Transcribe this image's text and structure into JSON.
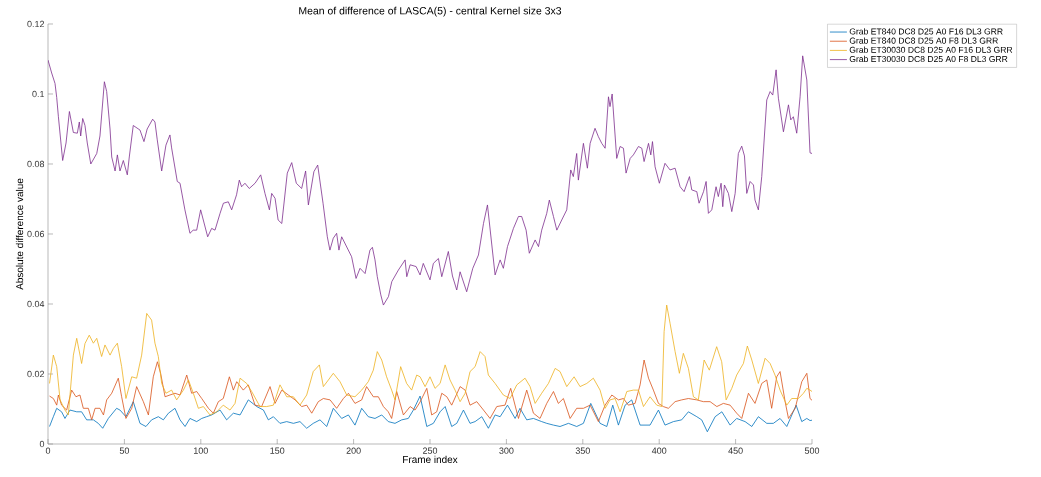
{
  "chart_data": {
    "type": "line",
    "title": "Mean of difference of LASCA(5) - central Kernel size 3x3",
    "xlabel": "Frame index",
    "ylabel": "Absolute difference value",
    "xlim": [
      0,
      500
    ],
    "ylim": [
      0,
      0.12
    ],
    "xticks": [
      0,
      50,
      100,
      150,
      200,
      250,
      300,
      350,
      400,
      450,
      500
    ],
    "yticks": [
      0,
      0.02,
      0.04,
      0.06,
      0.08,
      0.1,
      0.12
    ],
    "grid": false,
    "legend": "top right",
    "series": [
      {
        "name": "Grab ET840 DC8 D25 A0 F16 DL3 GRR",
        "color": "#0072bd",
        "x": [
          1,
          3.5,
          5.7,
          8.9,
          11.1,
          14.4,
          18.8,
          22,
          25.3,
          29.7,
          32.9,
          35.8,
          39.5,
          44.9,
          47.1,
          51,
          55.8,
          60.2,
          64.1,
          67.8,
          72.2,
          75.5,
          78.8,
          83.1,
          86.4,
          89.7,
          92.9,
          97.3,
          100.6,
          103.8,
          107.1,
          112.6,
          116.9,
          121.3,
          125.7,
          131.1,
          136.6,
          141,
          144.2,
          147.5,
          151.8,
          156.2,
          160.6,
          164.9,
          169.3,
          173.6,
          178,
          182.4,
          186.7,
          192.2,
          196.6,
          200.9,
          205.3,
          209.6,
          214,
          218.4,
          222.7,
          227.1,
          231.5,
          235.8,
          239.1,
          243.5,
          247.9,
          252.2,
          256.6,
          259.9,
          264.2,
          267.5,
          271.9,
          276.2,
          279.5,
          283.9,
          288.2,
          292.6,
          295.9,
          300.7,
          305.7,
          308.9,
          313.3,
          317.7,
          323.1,
          326.4,
          330.8,
          335.1,
          340.6,
          346,
          350.4,
          355.2,
          361.3,
          365.7,
          369.6,
          373.3,
          377.7,
          382,
          387.5,
          394,
          399.5,
          403.8,
          409.3,
          414.7,
          419.1,
          424.6,
          427.8,
          431.5,
          436.6,
          441,
          446.4,
          450.7,
          456.2,
          460.6,
          464.9,
          470.4,
          474.7,
          479.1,
          483.5,
          489.6,
          493.3,
          496.6,
          498.7,
          500
        ],
        "values": [
          0.005,
          0.0078,
          0.0102,
          0.0092,
          0.0073,
          0.0097,
          0.0092,
          0.0092,
          0.0069,
          0.0069,
          0.0059,
          0.0045,
          0.0073,
          0.0102,
          0.0097,
          0.0078,
          0.0121,
          0.0059,
          0.005,
          0.0069,
          0.0078,
          0.0069,
          0.0088,
          0.0102,
          0.0069,
          0.005,
          0.0073,
          0.0064,
          0.0073,
          0.0078,
          0.0083,
          0.0097,
          0.0069,
          0.0088,
          0.0083,
          0.0126,
          0.0107,
          0.0097,
          0.0069,
          0.0078,
          0.0059,
          0.0064,
          0.0059,
          0.0064,
          0.0045,
          0.0059,
          0.0069,
          0.005,
          0.0102,
          0.0073,
          0.0083,
          0.0054,
          0.0102,
          0.0078,
          0.0073,
          0.0083,
          0.0064,
          0.0059,
          0.0069,
          0.0073,
          0.0097,
          0.0137,
          0.005,
          0.0059,
          0.0092,
          0.0107,
          0.005,
          0.0059,
          0.0097,
          0.0059,
          0.0064,
          0.0078,
          0.0045,
          0.0083,
          0.0078,
          0.0111,
          0.0073,
          0.0102,
          0.0069,
          0.0073,
          0.0064,
          0.0059,
          0.0054,
          0.005,
          0.0059,
          0.005,
          0.0059,
          0.0116,
          0.0059,
          0.005,
          0.0111,
          0.0054,
          0.0111,
          0.0126,
          0.0054,
          0.0054,
          0.0097,
          0.0054,
          0.0064,
          0.0069,
          0.0092,
          0.0078,
          0.0069,
          0.0035,
          0.0078,
          0.0092,
          0.0054,
          0.0073,
          0.0064,
          0.005,
          0.0078,
          0.0059,
          0.0059,
          0.0073,
          0.005,
          0.0111,
          0.0064,
          0.0073,
          0.0067,
          0.0068
        ]
      },
      {
        "name": "Grab ET840 DC8 D25 A0 F8 DL3 GRR",
        "color": "#d95319",
        "x": [
          1,
          3.5,
          5.7,
          6.8,
          8.9,
          12.2,
          15.5,
          18.3,
          20.9,
          23.1,
          26.4,
          28.6,
          30.8,
          34,
          36.3,
          38.4,
          41.7,
          46,
          48.2,
          51,
          54.8,
          58,
          62.4,
          65.7,
          68.9,
          71.6,
          73.7,
          76.6,
          79.8,
          83.1,
          86.4,
          90.8,
          94,
          97.3,
          100.6,
          105,
          108.2,
          111.5,
          114.7,
          118.7,
          121.3,
          123.5,
          127.8,
          131.1,
          135.5,
          139.8,
          145.3,
          148.6,
          153,
          157.3,
          161.7,
          166,
          169.3,
          172.6,
          176.9,
          180.2,
          184.6,
          188.9,
          193.3,
          196.6,
          200.9,
          205.3,
          208.5,
          212.9,
          216.2,
          219.5,
          222.7,
          224.9,
          228.2,
          232.6,
          237,
          240.2,
          243.5,
          247.9,
          251.1,
          254.4,
          257.7,
          261,
          264.2,
          269.7,
          273,
          276.2,
          280.6,
          285,
          289.3,
          293.7,
          299.1,
          302.8,
          307.9,
          313.3,
          317.7,
          322,
          326.4,
          330.8,
          334,
          337.3,
          341.7,
          346,
          350.4,
          354.8,
          360.2,
          364.6,
          369,
          373.3,
          376.6,
          379.8,
          384.2,
          387.5,
          390.1,
          393,
          396.2,
          399.5,
          402.7,
          406,
          410.4,
          414.7,
          419.1,
          424.6,
          428.9,
          433.3,
          437.7,
          442,
          446.4,
          450.7,
          454,
          458.4,
          462.7,
          467.1,
          470.4,
          473.6,
          476.9,
          479.1,
          482.4,
          484.6,
          489,
          493.3,
          496.6,
          498.7,
          500
        ],
        "values": [
          0.0137,
          0.013,
          0.0111,
          0.014,
          0.0111,
          0.0097,
          0.0154,
          0.0135,
          0.014,
          0.0102,
          0.0102,
          0.0069,
          0.0102,
          0.0102,
          0.0083,
          0.0126,
          0.0145,
          0.0188,
          0.0135,
          0.0073,
          0.0102,
          0.0164,
          0.0121,
          0.0083,
          0.0192,
          0.0235,
          0.0202,
          0.0135,
          0.014,
          0.0145,
          0.014,
          0.0197,
          0.0145,
          0.015,
          0.013,
          0.0102,
          0.0088,
          0.0121,
          0.013,
          0.0192,
          0.0154,
          0.0178,
          0.0154,
          0.0169,
          0.0111,
          0.0107,
          0.0164,
          0.0116,
          0.0154,
          0.014,
          0.0126,
          0.0107,
          0.0111,
          0.0088,
          0.0121,
          0.013,
          0.0126,
          0.0102,
          0.013,
          0.0145,
          0.0116,
          0.0126,
          0.0164,
          0.0135,
          0.0135,
          0.0107,
          0.0092,
          0.0073,
          0.015,
          0.0083,
          0.0107,
          0.0097,
          0.012,
          0.0159,
          0.0083,
          0.0092,
          0.0145,
          0.0135,
          0.0111,
          0.0164,
          0.0154,
          0.0111,
          0.0121,
          0.0097,
          0.0073,
          0.0107,
          0.0111,
          0.0159,
          0.0073,
          0.0154,
          0.0088,
          0.0073,
          0.0116,
          0.015,
          0.0116,
          0.013,
          0.0073,
          0.0102,
          0.0102,
          0.0111,
          0.0064,
          0.0111,
          0.014,
          0.0126,
          0.013,
          0.0111,
          0.0116,
          0.0169,
          0.024,
          0.0188,
          0.0154,
          0.0116,
          0.0107,
          0.0102,
          0.0121,
          0.0126,
          0.013,
          0.0126,
          0.0121,
          0.0121,
          0.0107,
          0.0116,
          0.0111,
          0.0088,
          0.0073,
          0.0145,
          0.0116,
          0.0173,
          0.0183,
          0.0102,
          0.0192,
          0.0207,
          0.0121,
          0.0073,
          0.0102,
          0.0178,
          0.0202,
          0.013,
          0.0125
        ]
      },
      {
        "name": "Grab ET30030 DC8 D25 A0 F16 DL3 GRR",
        "color": "#edb120",
        "x": [
          1,
          3.5,
          5.7,
          7.9,
          11.1,
          13.3,
          16.6,
          18.8,
          22,
          24.2,
          27,
          29.7,
          31.9,
          35.1,
          37.3,
          40.6,
          42.8,
          45.4,
          48.2,
          51,
          54.8,
          58,
          61.3,
          64.6,
          67.8,
          70,
          72.2,
          74.4,
          77.2,
          80.9,
          84.2,
          88.6,
          91.9,
          95.1,
          98.4,
          101.7,
          106,
          110.4,
          114.7,
          119.1,
          122.4,
          125.7,
          130,
          133.3,
          138.7,
          143.1,
          147.5,
          151.8,
          156.2,
          160.6,
          164.9,
          169.3,
          173.6,
          177.6,
          180.2,
          183.5,
          186.7,
          191.1,
          195.5,
          200.9,
          205.3,
          209.6,
          212.9,
          215.5,
          218.4,
          221.6,
          224.9,
          227.1,
          230.8,
          234.7,
          238,
          241.3,
          243.5,
          246.8,
          250,
          253.3,
          256.6,
          259.9,
          263.1,
          266.4,
          269.7,
          273,
          276.2,
          279.5,
          282.8,
          286,
          288.2,
          292.6,
          298,
          302.4,
          306.8,
          312.2,
          315.5,
          318.8,
          323.1,
          327.5,
          331.9,
          335.1,
          339.5,
          344.3,
          348.2,
          352.6,
          356.9,
          361.3,
          364.6,
          367.8,
          371.1,
          374.4,
          378.8,
          383.1,
          386.4,
          389.7,
          394,
          398.4,
          401.7,
          403.2,
          404.9,
          407.1,
          410.4,
          413.2,
          415.8,
          419.1,
          422.4,
          425.6,
          429.4,
          432.8,
          437.6,
          440.9,
          443.8,
          447.5,
          450.7,
          455.1,
          457.7,
          460.6,
          464.9,
          469.3,
          472.6,
          475.8,
          479.1,
          483.5,
          486.7,
          491.1,
          494.4,
          496.6,
          498.7,
          500
        ],
        "values": [
          0.0173,
          0.0254,
          0.0221,
          0.0126,
          0.0097,
          0.0083,
          0.0254,
          0.0302,
          0.023,
          0.0287,
          0.0311,
          0.0288,
          0.0302,
          0.025,
          0.0283,
          0.0254,
          0.0273,
          0.0288,
          0.0221,
          0.013,
          0.0192,
          0.0188,
          0.0254,
          0.0373,
          0.0354,
          0.0288,
          0.025,
          0.0173,
          0.0145,
          0.0154,
          0.0126,
          0.0154,
          0.0183,
          0.0145,
          0.0102,
          0.0107,
          0.0083,
          0.0092,
          0.0111,
          0.0097,
          0.0116,
          0.0188,
          0.0173,
          0.015,
          0.0107,
          0.0107,
          0.0111,
          0.0169,
          0.0135,
          0.0135,
          0.0111,
          0.014,
          0.0207,
          0.0226,
          0.0164,
          0.0183,
          0.0202,
          0.0178,
          0.014,
          0.0135,
          0.0154,
          0.0178,
          0.0211,
          0.0264,
          0.024,
          0.0192,
          0.0154,
          0.0126,
          0.0221,
          0.0173,
          0.0154,
          0.0197,
          0.0192,
          0.0164,
          0.0192,
          0.0159,
          0.0173,
          0.0226,
          0.0183,
          0.0154,
          0.0121,
          0.0145,
          0.0207,
          0.0221,
          0.0264,
          0.025,
          0.0197,
          0.0173,
          0.014,
          0.013,
          0.0169,
          0.0188,
          0.0164,
          0.0116,
          0.0145,
          0.0173,
          0.0216,
          0.0207,
          0.0164,
          0.0192,
          0.0164,
          0.0173,
          0.0188,
          0.0154,
          0.0102,
          0.0126,
          0.013,
          0.0092,
          0.015,
          0.0154,
          0.0154,
          0.0107,
          0.0135,
          0.0111,
          0.0107,
          0.0321,
          0.0397,
          0.0345,
          0.0264,
          0.0202,
          0.0259,
          0.0216,
          0.0135,
          0.0126,
          0.024,
          0.0211,
          0.0278,
          0.0235,
          0.0126,
          0.0159,
          0.0197,
          0.023,
          0.028,
          0.024,
          0.0173,
          0.0245,
          0.023,
          0.0197,
          0.0154,
          0.0111,
          0.013,
          0.013,
          0.0145,
          0.0159,
          0.0154,
          0.015
        ]
      },
      {
        "name": "Grab ET30030 DC8 D25 A0 F8 DL3 GRR",
        "color": "#7e2f8e",
        "x": [
          0,
          2.4,
          4.6,
          5.7,
          6.8,
          9.6,
          11.8,
          14,
          16.6,
          19.2,
          20.5,
          21.4,
          22.7,
          24.2,
          25.7,
          28,
          31.9,
          34,
          36.9,
          38.4,
          40.6,
          41.7,
          43.9,
          45.4,
          47.1,
          49.3,
          51.9,
          53.2,
          55.8,
          60.2,
          62.8,
          64.9,
          68.5,
          70,
          71.5,
          74.4,
          77.2,
          79.8,
          80.9,
          84.6,
          86.4,
          89.6,
          92.9,
          95,
          97.3,
          99.9,
          104.5,
          107.1,
          109.3,
          112.6,
          114.8,
          118,
          120.2,
          123.4,
          125.2,
          126.7,
          128.9,
          131.7,
          135.5,
          139.2,
          142,
          144.9,
          146.4,
          148.6,
          150.6,
          153,
          156.6,
          159.5,
          162.5,
          166,
          168.6,
          170.4,
          174,
          176.5,
          180,
          182.8,
          184.5,
          186.7,
          188.9,
          190.4,
          192.2,
          198.7,
          201.6,
          204.2,
          207.5,
          210.7,
          212.3,
          214,
          215.5,
          217.8,
          219.5,
          222.8,
          225,
          229.3,
          233.7,
          234.8,
          237,
          240.9,
          243.5,
          245.6,
          250,
          252.2,
          255.5,
          257.7,
          262,
          264.7,
          267.5,
          269.7,
          274,
          278,
          281.7,
          285,
          287.6,
          292.6,
          295.9,
          298,
          300.7,
          304.6,
          307.9,
          310,
          312.9,
          315,
          318.8,
          321,
          323.1,
          326.4,
          328.1,
          330.8,
          333,
          336.2,
          339.5,
          342.1,
          343.8,
          346,
          347.1,
          350.4,
          353,
          354.8,
          358,
          360.2,
          362.4,
          364.6,
          366.8,
          367.8,
          369.2,
          372.2,
          374.4,
          376.6,
          378.3,
          381,
          383.1,
          386.4,
          388.6,
          390.1,
          393,
          394.5,
          395.6,
          397.3,
          400.1,
          403.8,
          407.1,
          410.4,
          413.7,
          416.3,
          419.8,
          421.3,
          424.6,
          426.1,
          429,
          430.7,
          432.2,
          434.4,
          437.2,
          438.7,
          440.5,
          441.6,
          442.7,
          445.3,
          447.5,
          449.7,
          451.8,
          454,
          455.8,
          457.3,
          459.5,
          461.7,
          462.7,
          464.9,
          467.1,
          470.4,
          472.6,
          474.3,
          476.5,
          478,
          481.3,
          484.6,
          486.1,
          487.8,
          490,
          492.2,
          493.9,
          496.6,
          498.7,
          500
        ],
        "values": [
          0.1097,
          0.106,
          0.103,
          0.099,
          0.0935,
          0.081,
          0.086,
          0.095,
          0.089,
          0.0888,
          0.092,
          0.088,
          0.093,
          0.091,
          0.086,
          0.08,
          0.083,
          0.088,
          0.1035,
          0.1007,
          0.09,
          0.082,
          0.078,
          0.0826,
          0.078,
          0.081,
          0.0769,
          0.082,
          0.091,
          0.0897,
          0.0864,
          0.09,
          0.0928,
          0.092,
          0.0869,
          0.078,
          0.0854,
          0.0883,
          0.0846,
          0.075,
          0.0745,
          0.0669,
          0.0602,
          0.0611,
          0.0611,
          0.0669,
          0.0592,
          0.0616,
          0.0611,
          0.0659,
          0.0688,
          0.0692,
          0.0669,
          0.0712,
          0.0754,
          0.0735,
          0.0745,
          0.073,
          0.0745,
          0.0769,
          0.0716,
          0.0669,
          0.0716,
          0.0702,
          0.064,
          0.063,
          0.0774,
          0.0804,
          0.0745,
          0.073,
          0.078,
          0.0683,
          0.0778,
          0.0797,
          0.0688,
          0.0592,
          0.0554,
          0.0588,
          0.0602,
          0.0554,
          0.0592,
          0.0535,
          0.0473,
          0.0502,
          0.0487,
          0.0554,
          0.0562,
          0.0526,
          0.0478,
          0.0426,
          0.0397,
          0.0421,
          0.0464,
          0.0497,
          0.0526,
          0.0478,
          0.0512,
          0.0507,
          0.0483,
          0.0516,
          0.0469,
          0.0516,
          0.053,
          0.0478,
          0.055,
          0.048,
          0.044,
          0.0492,
          0.0435,
          0.0502,
          0.054,
          0.063,
          0.0683,
          0.0483,
          0.0526,
          0.0502,
          0.0564,
          0.0616,
          0.065,
          0.065,
          0.0611,
          0.0545,
          0.0583,
          0.0564,
          0.0611,
          0.0659,
          0.0697,
          0.065,
          0.0611,
          0.064,
          0.0669,
          0.0783,
          0.0764,
          0.083,
          0.0754,
          0.0859,
          0.0788,
          0.0859,
          0.0902,
          0.0878,
          0.0859,
          0.0845,
          0.0992,
          0.0964,
          0.1,
          0.0816,
          0.085,
          0.0845,
          0.0774,
          0.0816,
          0.0826,
          0.085,
          0.0845,
          0.0807,
          0.0859,
          0.0826,
          0.0864,
          0.0792,
          0.0745,
          0.0802,
          0.0783,
          0.0788,
          0.0735,
          0.0721,
          0.0764,
          0.0726,
          0.0721,
          0.0688,
          0.0721,
          0.075,
          0.0659,
          0.0669,
          0.0735,
          0.0707,
          0.0745,
          0.0678,
          0.074,
          0.0716,
          0.0664,
          0.0716,
          0.083,
          0.0851,
          0.0823,
          0.0716,
          0.075,
          0.074,
          0.0697,
          0.0669,
          0.0764,
          0.0983,
          0.1007,
          0.0997,
          0.1069,
          0.0988,
          0.0892,
          0.0969,
          0.0926,
          0.0935,
          0.0888,
          0.0992,
          0.1109,
          0.104,
          0.0832,
          0.083
        ]
      }
    ]
  }
}
